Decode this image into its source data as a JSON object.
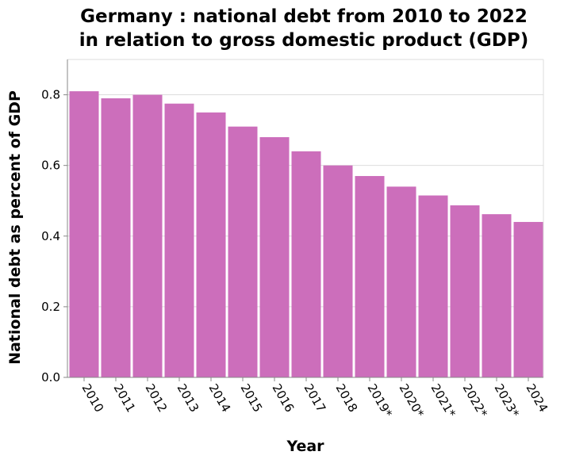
{
  "chart_data": {
    "type": "bar",
    "title": [
      "Germany : national debt from 2010 to 2022",
      "in relation to gross domestic product (GDP)"
    ],
    "xlabel": "Year",
    "ylabel": "National debt as percent of GDP",
    "categories": [
      "2010",
      "2011",
      "2012",
      "2013",
      "2014",
      "2015",
      "2016",
      "2017",
      "2018",
      "2019*",
      "2020*",
      "2021*",
      "2022*",
      "2023*",
      "2024"
    ],
    "values": [
      0.81,
      0.79,
      0.8,
      0.775,
      0.75,
      0.71,
      0.68,
      0.64,
      0.6,
      0.57,
      0.54,
      0.515,
      0.487,
      0.462,
      0.44
    ],
    "ylim": [
      0,
      0.9
    ],
    "yticks": [
      0.0,
      0.2,
      0.4,
      0.6,
      0.8
    ],
    "ytick_labels": [
      "0.0",
      "0.2",
      "0.4",
      "0.6",
      "0.8"
    ],
    "grid": true,
    "bar_color": "#cc6ebb"
  }
}
